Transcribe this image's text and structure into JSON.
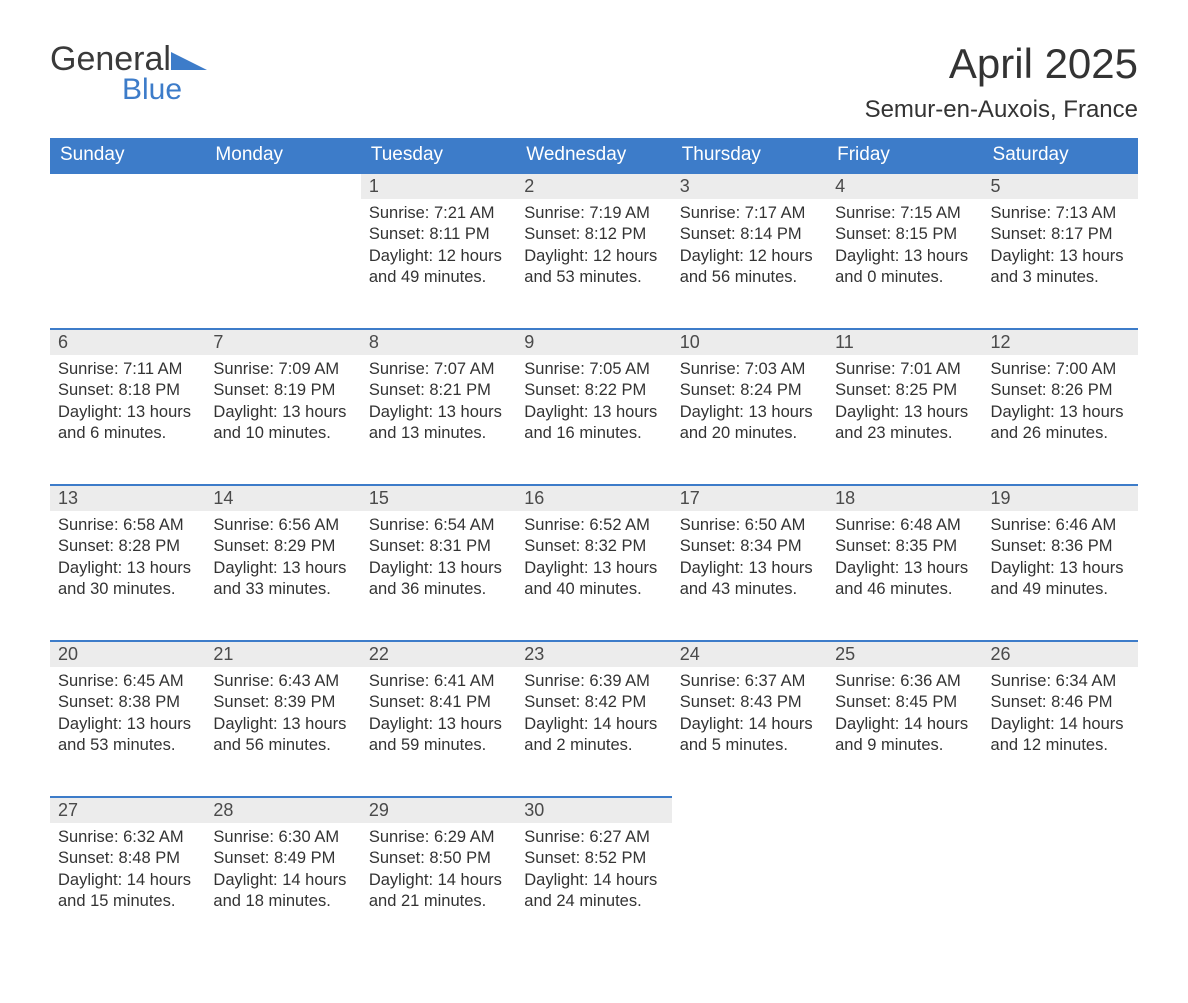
{
  "logo": {
    "text1": "General",
    "text2": "Blue",
    "tri_color": "#3d7cc9"
  },
  "title": "April 2025",
  "subtitle": "Semur-en-Auxois, France",
  "colors": {
    "header_bg": "#3d7cc9",
    "header_fg": "#ffffff",
    "daynum_bg": "#ececec",
    "daynum_border": "#3d7cc9",
    "body_fg": "#333333",
    "page_bg": "#ffffff"
  },
  "font": {
    "family": "Arial",
    "header_size_pt": 14,
    "body_size_pt": 12,
    "title_size_pt": 32,
    "subtitle_size_pt": 18
  },
  "calendar": {
    "type": "table",
    "columns": [
      "Sunday",
      "Monday",
      "Tuesday",
      "Wednesday",
      "Thursday",
      "Friday",
      "Saturday"
    ],
    "weeks": [
      [
        null,
        null,
        {
          "day": "1",
          "sunrise": "7:21 AM",
          "sunset": "8:11 PM",
          "daylight": "12 hours and 49 minutes."
        },
        {
          "day": "2",
          "sunrise": "7:19 AM",
          "sunset": "8:12 PM",
          "daylight": "12 hours and 53 minutes."
        },
        {
          "day": "3",
          "sunrise": "7:17 AM",
          "sunset": "8:14 PM",
          "daylight": "12 hours and 56 minutes."
        },
        {
          "day": "4",
          "sunrise": "7:15 AM",
          "sunset": "8:15 PM",
          "daylight": "13 hours and 0 minutes."
        },
        {
          "day": "5",
          "sunrise": "7:13 AM",
          "sunset": "8:17 PM",
          "daylight": "13 hours and 3 minutes."
        }
      ],
      [
        {
          "day": "6",
          "sunrise": "7:11 AM",
          "sunset": "8:18 PM",
          "daylight": "13 hours and 6 minutes."
        },
        {
          "day": "7",
          "sunrise": "7:09 AM",
          "sunset": "8:19 PM",
          "daylight": "13 hours and 10 minutes."
        },
        {
          "day": "8",
          "sunrise": "7:07 AM",
          "sunset": "8:21 PM",
          "daylight": "13 hours and 13 minutes."
        },
        {
          "day": "9",
          "sunrise": "7:05 AM",
          "sunset": "8:22 PM",
          "daylight": "13 hours and 16 minutes."
        },
        {
          "day": "10",
          "sunrise": "7:03 AM",
          "sunset": "8:24 PM",
          "daylight": "13 hours and 20 minutes."
        },
        {
          "day": "11",
          "sunrise": "7:01 AM",
          "sunset": "8:25 PM",
          "daylight": "13 hours and 23 minutes."
        },
        {
          "day": "12",
          "sunrise": "7:00 AM",
          "sunset": "8:26 PM",
          "daylight": "13 hours and 26 minutes."
        }
      ],
      [
        {
          "day": "13",
          "sunrise": "6:58 AM",
          "sunset": "8:28 PM",
          "daylight": "13 hours and 30 minutes."
        },
        {
          "day": "14",
          "sunrise": "6:56 AM",
          "sunset": "8:29 PM",
          "daylight": "13 hours and 33 minutes."
        },
        {
          "day": "15",
          "sunrise": "6:54 AM",
          "sunset": "8:31 PM",
          "daylight": "13 hours and 36 minutes."
        },
        {
          "day": "16",
          "sunrise": "6:52 AM",
          "sunset": "8:32 PM",
          "daylight": "13 hours and 40 minutes."
        },
        {
          "day": "17",
          "sunrise": "6:50 AM",
          "sunset": "8:34 PM",
          "daylight": "13 hours and 43 minutes."
        },
        {
          "day": "18",
          "sunrise": "6:48 AM",
          "sunset": "8:35 PM",
          "daylight": "13 hours and 46 minutes."
        },
        {
          "day": "19",
          "sunrise": "6:46 AM",
          "sunset": "8:36 PM",
          "daylight": "13 hours and 49 minutes."
        }
      ],
      [
        {
          "day": "20",
          "sunrise": "6:45 AM",
          "sunset": "8:38 PM",
          "daylight": "13 hours and 53 minutes."
        },
        {
          "day": "21",
          "sunrise": "6:43 AM",
          "sunset": "8:39 PM",
          "daylight": "13 hours and 56 minutes."
        },
        {
          "day": "22",
          "sunrise": "6:41 AM",
          "sunset": "8:41 PM",
          "daylight": "13 hours and 59 minutes."
        },
        {
          "day": "23",
          "sunrise": "6:39 AM",
          "sunset": "8:42 PM",
          "daylight": "14 hours and 2 minutes."
        },
        {
          "day": "24",
          "sunrise": "6:37 AM",
          "sunset": "8:43 PM",
          "daylight": "14 hours and 5 minutes."
        },
        {
          "day": "25",
          "sunrise": "6:36 AM",
          "sunset": "8:45 PM",
          "daylight": "14 hours and 9 minutes."
        },
        {
          "day": "26",
          "sunrise": "6:34 AM",
          "sunset": "8:46 PM",
          "daylight": "14 hours and 12 minutes."
        }
      ],
      [
        {
          "day": "27",
          "sunrise": "6:32 AM",
          "sunset": "8:48 PM",
          "daylight": "14 hours and 15 minutes."
        },
        {
          "day": "28",
          "sunrise": "6:30 AM",
          "sunset": "8:49 PM",
          "daylight": "14 hours and 18 minutes."
        },
        {
          "day": "29",
          "sunrise": "6:29 AM",
          "sunset": "8:50 PM",
          "daylight": "14 hours and 21 minutes."
        },
        {
          "day": "30",
          "sunrise": "6:27 AM",
          "sunset": "8:52 PM",
          "daylight": "14 hours and 24 minutes."
        },
        null,
        null,
        null
      ]
    ],
    "labels": {
      "sunrise": "Sunrise: ",
      "sunset": "Sunset: ",
      "daylight": "Daylight: "
    }
  }
}
